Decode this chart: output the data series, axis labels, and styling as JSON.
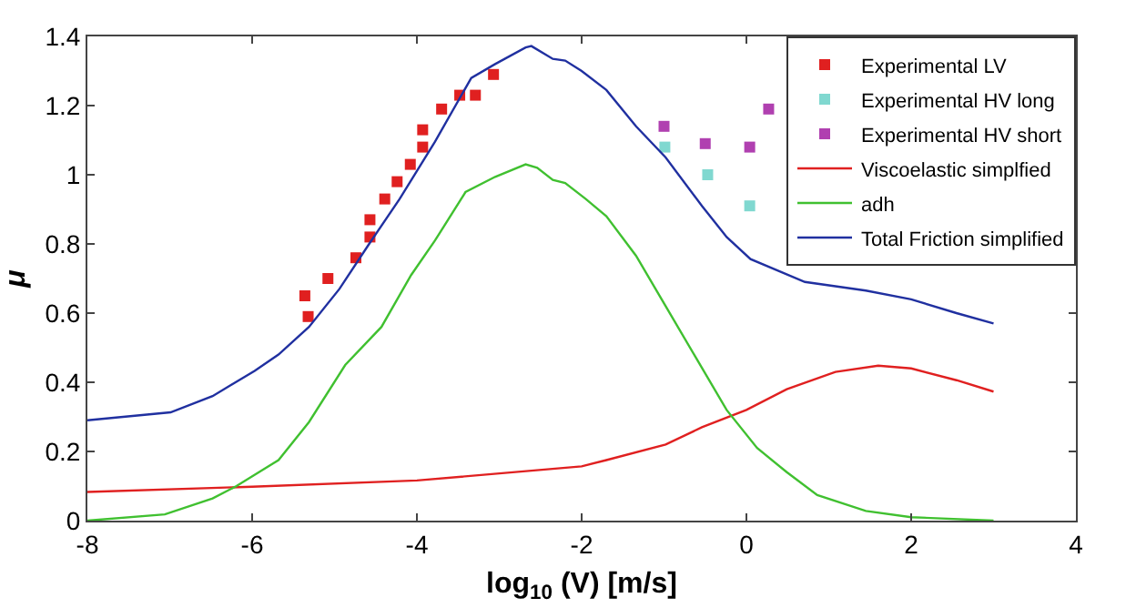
{
  "chart_data": {
    "type": "line",
    "xlabel": "log$_{10}$ (V) [m/s]",
    "ylabel": "μ",
    "xlim": [
      -8,
      4
    ],
    "xticks": [
      -8,
      -6,
      -4,
      -2,
      0,
      2,
      4
    ],
    "ylim": [
      0,
      1.4
    ],
    "yticks": [
      0,
      0.2,
      0.4,
      0.6,
      0.8,
      1,
      1.2,
      1.4
    ],
    "grid": false,
    "legend": "top right",
    "series": [
      {
        "name": "Experimental LV",
        "type": "scatter",
        "marker": "square",
        "color": "#e02020",
        "x": [
          -5.36,
          -5.32,
          -5.08,
          -4.74,
          -4.57,
          -4.57,
          -4.39,
          -4.24,
          -4.08,
          -3.93,
          -3.93,
          -3.7,
          -3.48,
          -3.29,
          -3.07
        ],
        "values": [
          0.65,
          0.59,
          0.7,
          0.76,
          0.82,
          0.87,
          0.93,
          0.98,
          1.03,
          1.08,
          1.13,
          1.19,
          1.23,
          1.23,
          1.29
        ]
      },
      {
        "name": "Experimental HV long",
        "type": "scatter",
        "marker": "square",
        "color": "#80d8d0",
        "x": [
          -0.99,
          -0.47,
          0.04
        ],
        "values": [
          1.08,
          1.0,
          0.91
        ]
      },
      {
        "name": "Experimental HV short",
        "type": "scatter",
        "marker": "square",
        "color": "#b040b0",
        "x": [
          -1.0,
          -0.5,
          0.04,
          0.27
        ],
        "values": [
          1.14,
          1.09,
          1.08,
          1.19
        ]
      },
      {
        "name": "Viscoelastic simplfied",
        "color": "#e02020",
        "x": [
          -8,
          -6,
          -4,
          -2,
          -1.7,
          -0.98,
          -0.54,
          0,
          0.49,
          1.08,
          1.6,
          2,
          2.55,
          3
        ],
        "values": [
          0.083,
          0.098,
          0.116,
          0.157,
          0.175,
          0.22,
          0.27,
          0.32,
          0.38,
          0.43,
          0.448,
          0.44,
          0.406,
          0.373
        ]
      },
      {
        "name": "adh",
        "color": "#40c030",
        "x": [
          -8,
          -7.06,
          -6.48,
          -6.19,
          -5.68,
          -5.31,
          -4.87,
          -4.43,
          -4.07,
          -3.78,
          -3.41,
          -3.05,
          -2.68,
          -2.54,
          -2.35,
          -2.2,
          -1.95,
          -1.7,
          -1.34,
          -0.98,
          -0.61,
          -0.24,
          0.13,
          0.49,
          0.86,
          1.45,
          2,
          3
        ],
        "values": [
          0,
          0.018,
          0.064,
          0.1,
          0.175,
          0.285,
          0.45,
          0.56,
          0.71,
          0.81,
          0.95,
          0.994,
          1.03,
          1.02,
          0.985,
          0.976,
          0.93,
          0.88,
          0.766,
          0.62,
          0.47,
          0.32,
          0.21,
          0.14,
          0.074,
          0.028,
          0.01,
          0
        ]
      },
      {
        "name": "Total Friction simplified",
        "color": "#2030a0",
        "x": [
          -8,
          -6.99,
          -6.48,
          -5.97,
          -5.68,
          -5.31,
          -4.94,
          -4.58,
          -4.21,
          -3.78,
          -3.34,
          -3.05,
          -2.68,
          -2.61,
          -2.35,
          -2.2,
          -2,
          -1.7,
          -1.34,
          -0.98,
          -0.54,
          -0.24,
          0.05,
          0.71,
          1.45,
          2,
          2.55,
          3
        ],
        "values": [
          0.29,
          0.313,
          0.36,
          0.433,
          0.48,
          0.56,
          0.67,
          0.8,
          0.93,
          1.096,
          1.28,
          1.32,
          1.368,
          1.372,
          1.335,
          1.33,
          1.3,
          1.245,
          1.14,
          1.05,
          0.91,
          0.82,
          0.756,
          0.69,
          0.665,
          0.64,
          0.6,
          0.57
        ]
      }
    ]
  }
}
